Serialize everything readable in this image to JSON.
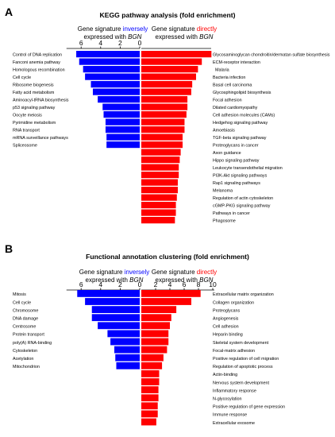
{
  "chart_data": [
    {
      "type": "bar",
      "panel_letter": "A",
      "title": "KEGG pathway analysis (fold enrichment)",
      "left_header": {
        "pre": "Gene signature ",
        "key": "inversely",
        "line2_pre": "expressed with ",
        "line2_gene": "BGN"
      },
      "right_header": {
        "pre": "Gene signature ",
        "key": "directly",
        "line2_pre": "expressed with ",
        "line2_gene": "BGN"
      },
      "left_ticks": [
        "6",
        "4",
        "2",
        "0"
      ],
      "right_ticks": [],
      "xlim_left": [
        0,
        7.5
      ],
      "xlim_right": [
        0,
        7.5
      ],
      "left_color": "#0000FF",
      "right_color": "#FF0000",
      "left_series": {
        "name": "inversely",
        "categories": [
          "Control of DNA replication",
          "Fanconi anemia pathway",
          "Homologous recombination",
          "Cell cycle",
          "Ribosome biogenesis",
          "Fatty acid metabolism",
          "Aminoacyl-tRNA biosynthesis",
          "p53 signaling pathway",
          "Oocyte meiosis",
          "Pyrimidine metabolism",
          "RNA transport",
          "mRNA surveillance pathways",
          "Spliceosome"
        ],
        "values": [
          6.5,
          6.2,
          5.8,
          5.6,
          5.0,
          4.8,
          4.3,
          3.8,
          3.7,
          3.5,
          3.5,
          3.4,
          3.4
        ]
      },
      "right_series": {
        "name": "directly",
        "categories": [
          "Glycosaminoglycan chondroitin/dermatan sulfate biosynthesis",
          "ECM-receptor interaction",
          "Malaria",
          "Bacteria infection",
          "Basal cell carcinoma",
          "Glycosphingolipid biosynthesis",
          "Focal adhesion",
          "Dilated cardiomyopathy",
          "Cell adhesion molecules (CAMs)",
          "Hedgehog signaling pathway",
          "Amoebiasis",
          "TGF-beta signaling pathway",
          "Proteoglycans in cancer",
          "Axon guidance",
          "Hippo signaling pathway",
          "Leukocyte transendothelial migration",
          "PI3K-Akt signaling pathways",
          "Rap1 signaling pathways",
          "Melanoma",
          "Regulation of actin cytoskeleton",
          "cGMP-PKG signaling pathway",
          "Pathways in cancer",
          "Phagosome"
        ],
        "values": [
          7.3,
          6.3,
          5.9,
          5.7,
          5.3,
          5.2,
          4.8,
          4.8,
          4.7,
          4.5,
          4.5,
          4.3,
          4.3,
          4.1,
          4.0,
          3.9,
          3.9,
          3.8,
          3.8,
          3.7,
          3.6,
          3.6,
          3.5
        ]
      }
    },
    {
      "type": "bar",
      "panel_letter": "B",
      "title": "Functional annotation clustering (fold enrichment)",
      "left_header": {
        "pre": "Gene signature ",
        "key": "inversely",
        "line2_pre": "expressed with ",
        "line2_gene": "BGN"
      },
      "right_header": {
        "pre": "Gene signature ",
        "key": "directly",
        "line2_pre": "expressed with ",
        "line2_gene": "BGN"
      },
      "left_ticks": [
        "6",
        "4",
        "2",
        "0"
      ],
      "right_ticks": [
        "2",
        "4",
        "6",
        "8",
        "10"
      ],
      "xlim_left": [
        0,
        7.5
      ],
      "xlim_right": [
        0,
        10
      ],
      "left_color": "#0000FF",
      "right_color": "#FF0000",
      "left_series": {
        "name": "inversely",
        "categories": [
          "Mitosis",
          "Cell cycle",
          "Chromosome",
          "DNA damage",
          "Centrosome",
          "Protein transport",
          "poly(A) RNA-binding",
          "Cytoskeleton",
          "Acetylation",
          "Mitochondrion"
        ],
        "values": [
          6.4,
          5.6,
          4.9,
          4.9,
          4.3,
          3.3,
          3.0,
          2.6,
          2.5,
          2.4
        ]
      },
      "right_series": {
        "name": "directly",
        "categories": [
          "Extracellular matrix organization",
          "Collagen organization",
          "Proteoglycans",
          "Angiogenesis",
          "Cell adhesion",
          "Heparin binding",
          "Skeletal system development",
          "Focal-matrix adhesion",
          "Positive regulation of cell migration",
          "Regulation of apoptotic process",
          "Actin-binding",
          "Nervous system development",
          "Inflammatory response",
          "N-glycosylation",
          "Positive regulation of gene expression",
          "Immune response",
          "Extracellular exosome"
        ],
        "values": [
          8.3,
          7.0,
          4.9,
          4.2,
          4.0,
          3.8,
          3.8,
          3.6,
          3.1,
          2.9,
          2.5,
          2.5,
          2.4,
          2.4,
          2.3,
          2.3,
          2.1
        ]
      }
    }
  ]
}
